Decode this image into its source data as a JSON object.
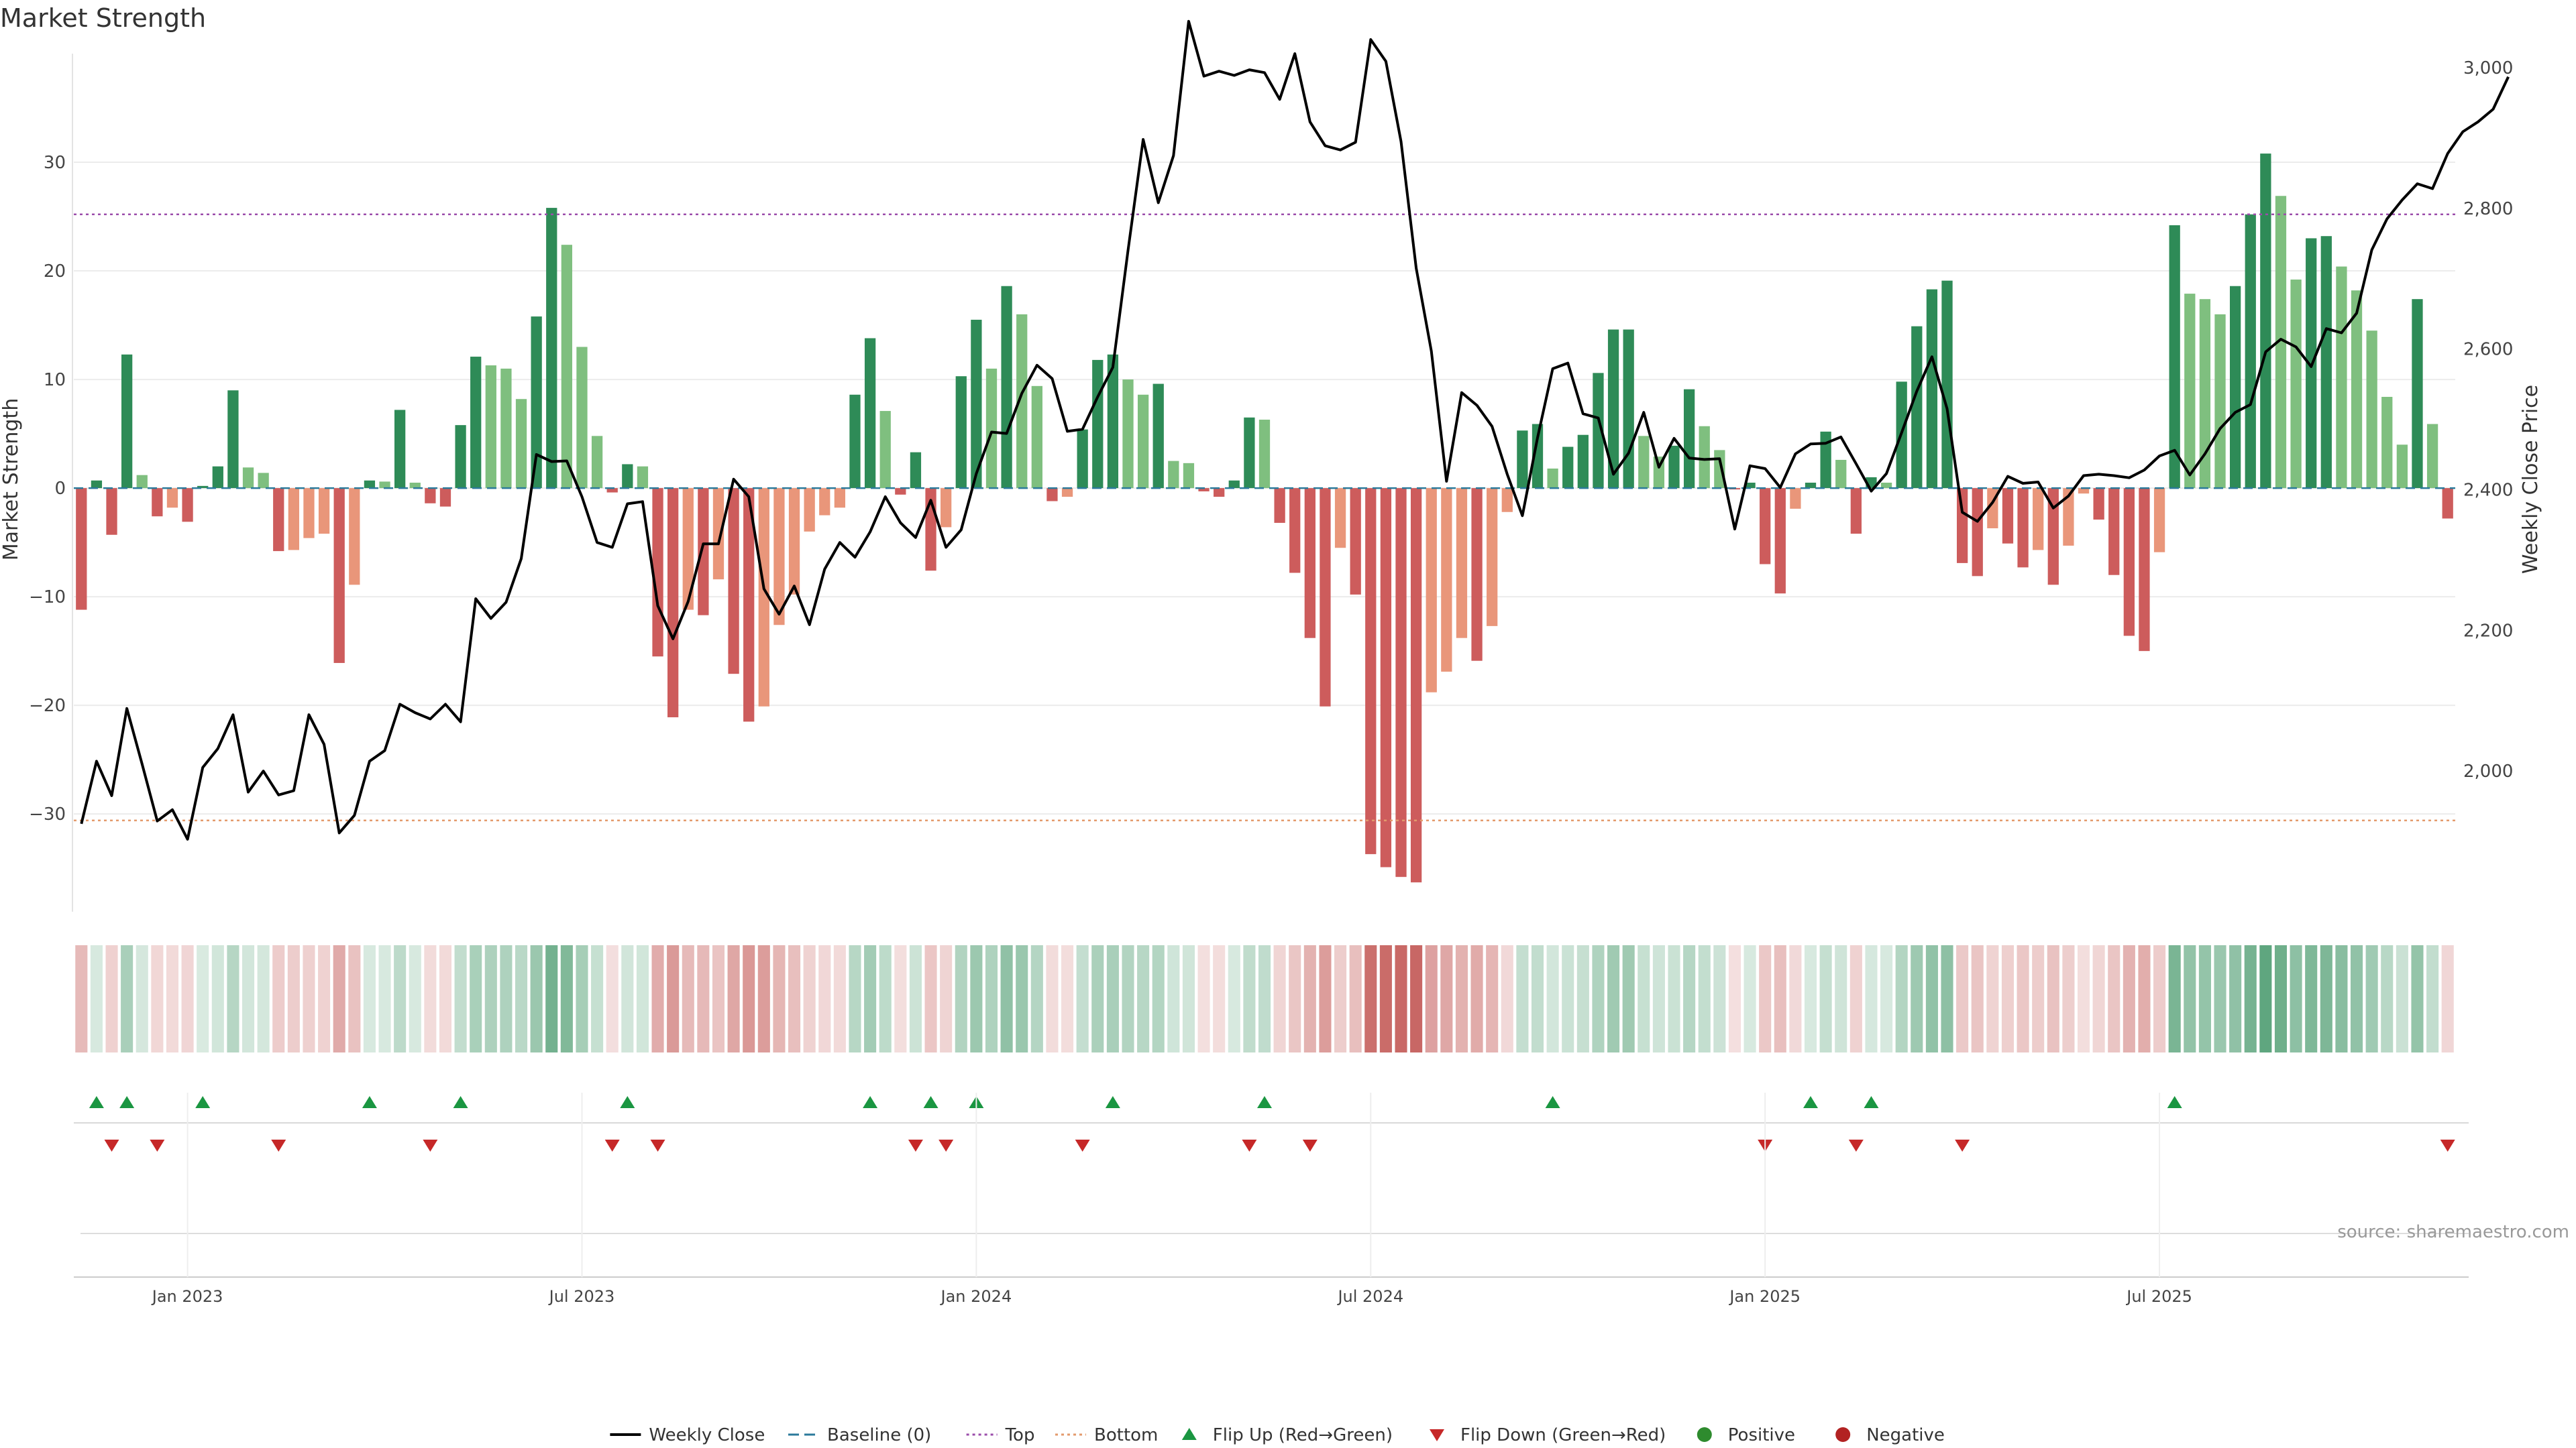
{
  "chart_data": {
    "type": "bar",
    "title": "Market Strength",
    "ylabel_left": "Market Strength",
    "ylabel_right": "Weekly Close Price",
    "ylim_left": [
      -39,
      40
    ],
    "ylim_right": [
      1800,
      3020
    ],
    "left_ticks": [
      30,
      20,
      10,
      0,
      -10,
      -20,
      -30
    ],
    "left_tick_labels": [
      "30",
      "20",
      "10",
      "0",
      "−10",
      "−20",
      "−30"
    ],
    "right_ticks": [
      3000,
      2800,
      2600,
      2400,
      2200,
      2000
    ],
    "right_tick_labels": [
      "3,000",
      "2,800",
      "2,600",
      "2,400",
      "2,200",
      "2,000"
    ],
    "date_ticks": [
      "Jan 2023",
      "Jul 2023",
      "Jan 2024",
      "Jul 2024",
      "Jan 2025",
      "Jul 2025"
    ],
    "date_tick_weeks": [
      7,
      33,
      59,
      85,
      111,
      137
    ],
    "top_level": 25.2,
    "bottom_level": -30.6,
    "grid": true,
    "source": "source: sharemaestro.com",
    "strength": [
      -11.2,
      0.7,
      -4.3,
      12.3,
      1.2,
      -2.6,
      -1.8,
      -3.1,
      0.2,
      2.0,
      9.0,
      1.9,
      1.4,
      -5.8,
      -5.7,
      -4.6,
      -4.2,
      -16.1,
      -8.9,
      0.7,
      0.6,
      7.2,
      0.5,
      -1.4,
      -1.7,
      5.8,
      12.1,
      11.3,
      11.0,
      8.2,
      15.8,
      25.8,
      22.4,
      13.0,
      4.8,
      -0.4,
      2.2,
      2.0,
      -15.5,
      -21.1,
      -11.2,
      -11.7,
      -8.4,
      -17.1,
      -21.5,
      -20.1,
      -12.6,
      -9.8,
      -4.0,
      -2.5,
      -1.8,
      8.6,
      13.8,
      7.1,
      -0.6,
      3.3,
      -7.6,
      -3.6,
      10.3,
      15.5,
      11.0,
      18.6,
      16.0,
      9.4,
      -1.2,
      -0.8,
      5.4,
      11.8,
      12.3,
      10.0,
      8.6,
      9.6,
      2.5,
      2.3,
      -0.3,
      -0.8,
      0.7,
      6.5,
      6.3,
      -3.2,
      -7.8,
      -13.8,
      -20.1,
      -5.5,
      -9.8,
      -33.7,
      -34.9,
      -35.8,
      -36.3,
      -18.8,
      -16.9,
      -13.8,
      -15.9,
      -12.7,
      -2.2,
      5.3,
      5.9,
      1.8,
      3.8,
      4.9,
      10.6,
      14.6,
      14.6,
      4.8,
      2.9,
      3.9,
      9.1,
      5.7,
      3.5,
      -0.1,
      0.5,
      -7.0,
      -9.7,
      -1.9,
      0.5,
      5.2,
      2.6,
      -4.2,
      1.0,
      0.5,
      9.8,
      14.9,
      18.3,
      19.1,
      -6.9,
      -8.1,
      -3.7,
      -5.1,
      -7.3,
      -5.7,
      -8.9,
      -5.3,
      -0.5,
      -2.9,
      -8.0,
      -13.6,
      -15.0,
      -5.9,
      24.2,
      17.9,
      17.4,
      16.0,
      18.6,
      25.2,
      30.8,
      26.9,
      19.2,
      23.0,
      23.2,
      20.4,
      18.2,
      14.5,
      8.4,
      4.0,
      17.4,
      5.9,
      -2.8
    ],
    "weekly_close": [
      1925,
      2014,
      1965,
      2089,
      2010,
      1929,
      1945,
      1903,
      2005,
      2032,
      2080,
      1970,
      2000,
      1966,
      1972,
      2080,
      2038,
      1912,
      1937,
      2014,
      2029,
      2095,
      2083,
      2074,
      2095,
      2070,
      2245,
      2217,
      2240,
      2302,
      2450,
      2440,
      2441,
      2390,
      2325,
      2318,
      2380,
      2383,
      2235,
      2188,
      2241,
      2323,
      2323,
      2415,
      2390,
      2259,
      2223,
      2263,
      2208,
      2287,
      2325,
      2304,
      2340,
      2390,
      2353,
      2332,
      2385,
      2318,
      2343,
      2423,
      2482,
      2480,
      2537,
      2577,
      2558,
      2483,
      2486,
      2532,
      2574,
      2740,
      2898,
      2808,
      2875,
      3066,
      2988,
      2995,
      2989,
      2997,
      2993,
      2955,
      3020,
      2923,
      2889,
      2883,
      2894,
      3040,
      3009,
      2895,
      2715,
      2597,
      2412,
      2538,
      2520,
      2490,
      2422,
      2363,
      2474,
      2572,
      2580,
      2508,
      2502,
      2422,
      2452,
      2510,
      2432,
      2473,
      2445,
      2443,
      2444,
      2344,
      2434,
      2430,
      2403,
      2451,
      2465,
      2466,
      2475,
      2437,
      2398,
      2423,
      2481,
      2540,
      2589,
      2515,
      2368,
      2355,
      2382,
      2419,
      2409,
      2411,
      2374,
      2391,
      2420,
      2422,
      2420,
      2417,
      2428,
      2448,
      2456,
      2421,
      2451,
      2487,
      2510,
      2521,
      2596,
      2614,
      2603,
      2575,
      2629,
      2623,
      2651,
      2741,
      2785,
      2812,
      2835,
      2828,
      2878,
      2909,
      2923,
      2941,
      2987
    ]
  },
  "heat_strip": {
    "colors": {
      "green": "#2e8b57",
      "red": "#c0504d"
    }
  },
  "flip_markers": {
    "up_weeks": [
      1,
      3,
      8,
      19,
      25,
      36,
      52,
      56,
      59,
      68,
      78,
      97,
      114,
      118,
      138
    ],
    "down_weeks": [
      2,
      5,
      13,
      23,
      35,
      38,
      55,
      57,
      66,
      77,
      81,
      111,
      117,
      124,
      156
    ],
    "up_color": "#1a9641",
    "down_color": "#c62828"
  },
  "legend": [
    {
      "label": "Weekly Close",
      "kind": "line-solid",
      "color": "#000000"
    },
    {
      "label": "Baseline (0)",
      "kind": "line-dashed",
      "color": "#2b7a9b"
    },
    {
      "label": "Top",
      "kind": "line-dotted",
      "color": "#9b4dab"
    },
    {
      "label": "Bottom",
      "kind": "line-dotted",
      "color": "#e39a6c"
    },
    {
      "label": "Flip Up (Red→Green)",
      "kind": "tri-up",
      "color": "#1a9641"
    },
    {
      "label": "Flip Down (Green→Red)",
      "kind": "tri-down",
      "color": "#c62828"
    },
    {
      "label": "Positive",
      "kind": "dot",
      "color": "#2e8b2e"
    },
    {
      "label": "Negative",
      "kind": "dot",
      "color": "#b22222"
    }
  ]
}
